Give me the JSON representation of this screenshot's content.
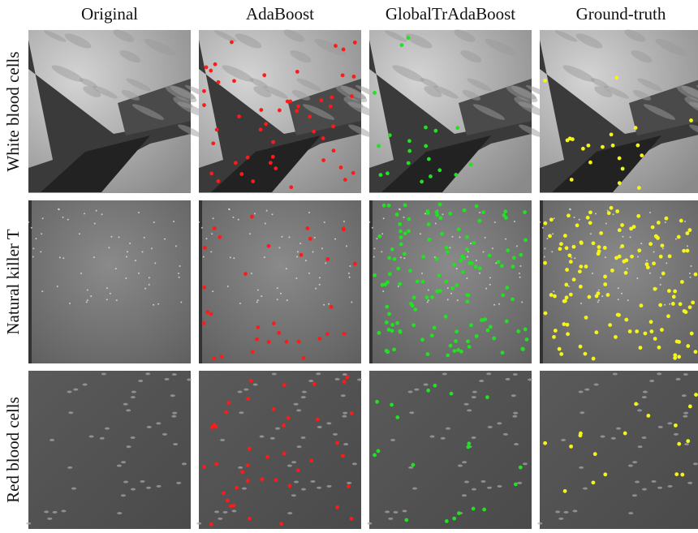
{
  "columns": [
    "Original",
    "AdaBoost",
    "GlobalTrAdaBoost",
    "Ground-truth"
  ],
  "rows": [
    "White blood cells",
    "Natural killer T",
    "Red blood cells"
  ]
}
